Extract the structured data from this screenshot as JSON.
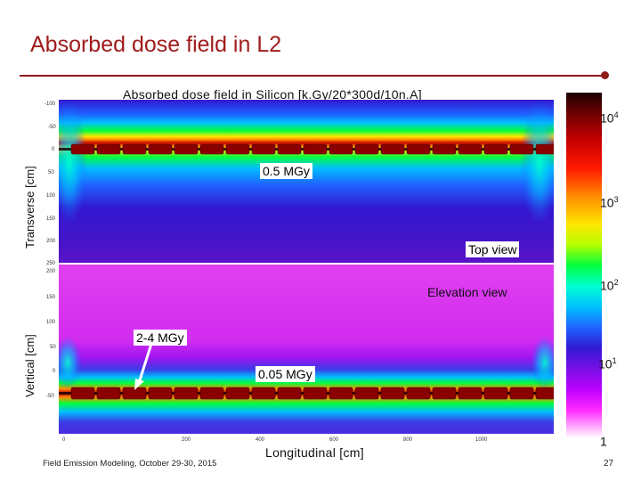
{
  "slide": {
    "title": "Absorbed dose field in L2",
    "footer": "Field Emission Modeling, October 29-30, 2015",
    "page_number": "27"
  },
  "figure": {
    "title": "Absorbed dose field in Silicon [k.Gy/20*300d/10n.A]",
    "ylabel_top": "Transverse [cm]",
    "ylabel_bottom": "Vertical [cm]",
    "xlabel": "Longitudinal [cm]",
    "top_ticks": [
      "-100",
      "-50",
      "0",
      "50",
      "100",
      "150",
      "200",
      "250"
    ],
    "bottom_ticks": [
      "200",
      "150",
      "100",
      "50",
      "0",
      "-50"
    ],
    "x_ticks": [
      "0",
      "200",
      "400",
      "600",
      "800",
      "1000"
    ],
    "annotations": {
      "top_dose": "0.5 MGy",
      "top_view": "Top view",
      "elevation_view": "Elevation view",
      "peak_dose": "2-4 MGy",
      "bottom_dose": "0.05 MGy"
    },
    "colorbar": {
      "scale": "log",
      "labels": [
        {
          "base": "10",
          "exp": "4"
        },
        {
          "base": "10",
          "exp": "3"
        },
        {
          "base": "10",
          "exp": "2"
        },
        {
          "base": "10",
          "exp": "1"
        },
        {
          "base": "1",
          "exp": ""
        }
      ]
    }
  }
}
